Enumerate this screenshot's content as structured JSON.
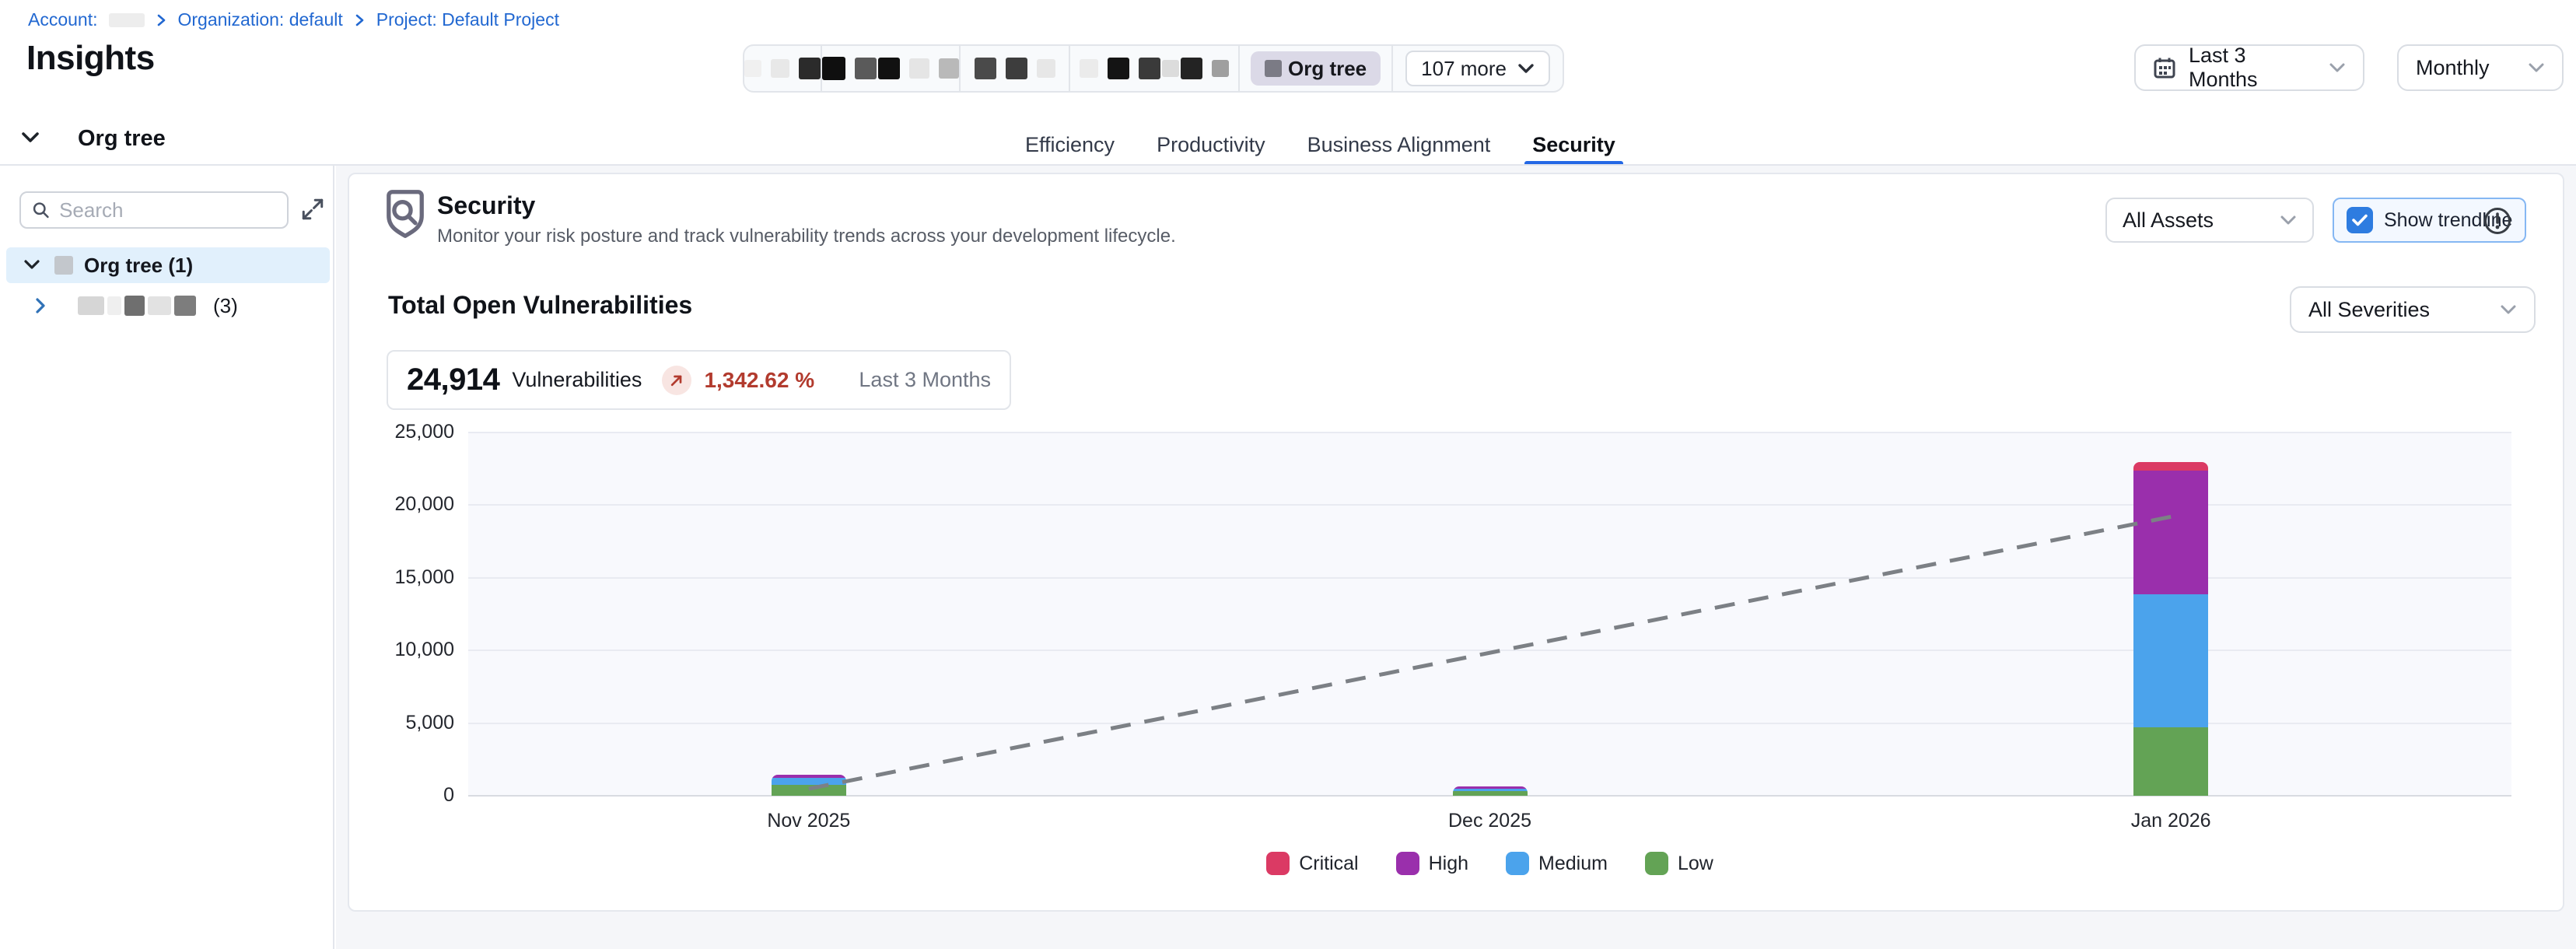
{
  "breadcrumb": {
    "account": "Account:",
    "org": "Organization: default",
    "project": "Project: Default Project"
  },
  "page": {
    "title": "Insights"
  },
  "toolbar": {
    "org_tree_chip": "Org tree",
    "more_label": "107 more"
  },
  "filters": {
    "date_range": "Last 3 Months",
    "granularity": "Monthly"
  },
  "tabs": {
    "items": [
      {
        "label": "Efficiency"
      },
      {
        "label": "Productivity"
      },
      {
        "label": "Business Alignment"
      },
      {
        "label": "Security"
      }
    ]
  },
  "sidebar": {
    "header": "Org tree",
    "search_placeholder": "Search",
    "tree": {
      "root_label": "Org tree (1)",
      "child_count": "(3)"
    }
  },
  "security": {
    "title": "Security",
    "description": "Monitor your risk posture and track vulnerability trends across your development lifecycle.",
    "assets_filter": "All Assets",
    "trendline_label": "Show trendline"
  },
  "vulnerabilities": {
    "section_title": "Total Open Vulnerabilities",
    "severity_filter": "All Severities",
    "total": "24,914",
    "unit": "Vulnerabilities",
    "change_percent": "1,342.62 %",
    "period": "Last 3 Months"
  },
  "chart_data": {
    "type": "bar",
    "stacked": true,
    "title": "Total Open Vulnerabilities",
    "categories": [
      "Nov 2025",
      "Dec 2025",
      "Jan 2026"
    ],
    "series": [
      {
        "name": "Critical",
        "color": "#DB3A64",
        "values": [
          0,
          0,
          590
        ]
      },
      {
        "name": "High",
        "color": "#9A2FAC",
        "values": [
          200,
          150,
          8500
        ]
      },
      {
        "name": "Medium",
        "color": "#4BA3EC",
        "values": [
          480,
          160,
          9160
        ]
      },
      {
        "name": "Low",
        "color": "#63A355",
        "values": [
          760,
          310,
          4700
        ]
      }
    ],
    "ylim": [
      0,
      25000
    ],
    "yticks": [
      {
        "value": 0,
        "label": "0"
      },
      {
        "value": 5000,
        "label": "5,000"
      },
      {
        "value": 10000,
        "label": "10,000"
      },
      {
        "value": 15000,
        "label": "15,000"
      },
      {
        "value": 20000,
        "label": "20,000"
      },
      {
        "value": 25000,
        "label": "25,000"
      }
    ],
    "legend": [
      "Critical",
      "High",
      "Medium",
      "Low"
    ],
    "legend_position": "bottom",
    "grid": true,
    "trendline": {
      "shown": true,
      "start_value": 480,
      "end_value": 19200,
      "style": "dashed",
      "color": "#7c8085"
    }
  },
  "colors": {
    "accent_blue": "#2E7CE0",
    "active_tab": "#2468E5",
    "negative_red": "#B23B2E",
    "plot_bg": "#F8F9FD"
  }
}
